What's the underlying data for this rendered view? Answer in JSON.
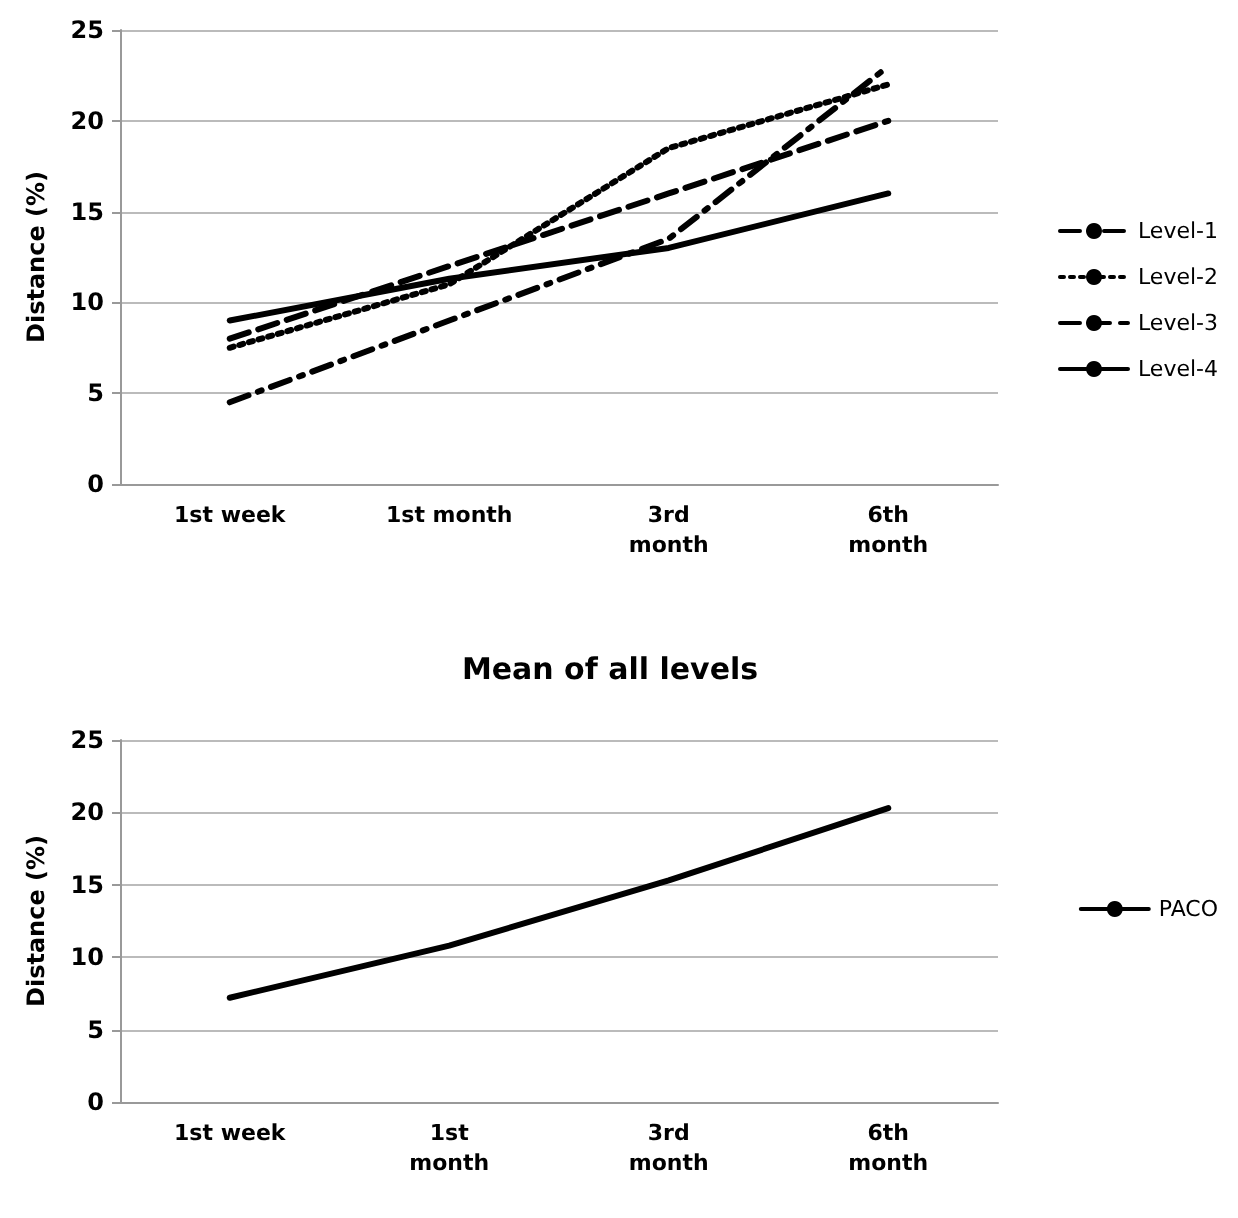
{
  "chart_data": [
    {
      "type": "line",
      "ylabel": "Distance (%)",
      "categories": [
        "1st week",
        "1st month",
        "3rd\nmonth",
        "6th\nmonth"
      ],
      "ylim": [
        0,
        25
      ],
      "yticks": [
        0,
        5,
        10,
        15,
        20,
        25
      ],
      "grid": "y",
      "legend": "right",
      "marker": "none",
      "series": [
        {
          "name": "Level-1",
          "color": "#000000",
          "line_style": "dashdot",
          "values": [
            4.5,
            9,
            13.5,
            23
          ]
        },
        {
          "name": "Level-2",
          "color": "#000000",
          "line_style": "dotted",
          "values": [
            7.5,
            11,
            18.5,
            22
          ]
        },
        {
          "name": "Level-3",
          "color": "#000000",
          "line_style": "dashed",
          "values": [
            8,
            12,
            16,
            20
          ]
        },
        {
          "name": "Level-4",
          "color": "#000000",
          "line_style": "solid",
          "values": [
            9,
            11.3,
            13,
            16
          ]
        }
      ]
    },
    {
      "type": "line",
      "title": "Mean of all levels",
      "ylabel": "Distance (%)",
      "categories": [
        "1st week",
        "1st\nmonth",
        "3rd\nmonth",
        "6th\nmonth"
      ],
      "ylim": [
        0,
        25
      ],
      "yticks": [
        0,
        5,
        10,
        15,
        20,
        25
      ],
      "grid": "y",
      "legend": "right",
      "marker": "none",
      "series": [
        {
          "name": "PACO",
          "color": "#000000",
          "line_style": "solid",
          "values": [
            7.2,
            10.8,
            15.3,
            20.3
          ]
        }
      ]
    }
  ]
}
